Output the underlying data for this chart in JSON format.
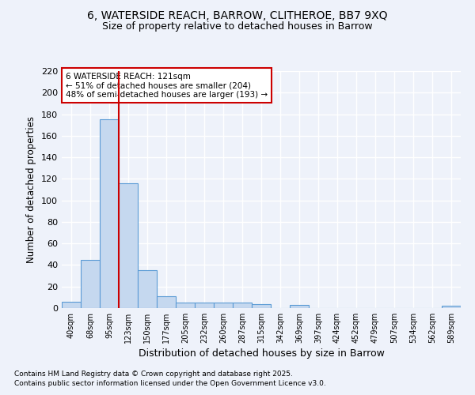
{
  "title1": "6, WATERSIDE REACH, BARROW, CLITHEROE, BB7 9XQ",
  "title2": "Size of property relative to detached houses in Barrow",
  "xlabel": "Distribution of detached houses by size in Barrow",
  "ylabel": "Number of detached properties",
  "categories": [
    "40sqm",
    "68sqm",
    "95sqm",
    "123sqm",
    "150sqm",
    "177sqm",
    "205sqm",
    "232sqm",
    "260sqm",
    "287sqm",
    "315sqm",
    "342sqm",
    "369sqm",
    "397sqm",
    "424sqm",
    "452sqm",
    "479sqm",
    "507sqm",
    "534sqm",
    "562sqm",
    "589sqm"
  ],
  "values": [
    6,
    45,
    175,
    116,
    35,
    11,
    5,
    5,
    5,
    5,
    4,
    0,
    3,
    0,
    0,
    0,
    0,
    0,
    0,
    0,
    2
  ],
  "bar_color": "#c5d8ef",
  "bar_edge_color": "#5b9bd5",
  "background_color": "#eef2fa",
  "grid_color": "#ffffff",
  "annotation_text": "6 WATERSIDE REACH: 121sqm\n← 51% of detached houses are smaller (204)\n48% of semi-detached houses are larger (193) →",
  "annotation_box_color": "#ffffff",
  "annotation_box_edge_color": "#cc0000",
  "vline_color": "#cc0000",
  "vline_x_index": 3,
  "ylim": [
    0,
    220
  ],
  "yticks": [
    0,
    20,
    40,
    60,
    80,
    100,
    120,
    140,
    160,
    180,
    200,
    220
  ],
  "footnote1": "Contains HM Land Registry data © Crown copyright and database right 2025.",
  "footnote2": "Contains public sector information licensed under the Open Government Licence v3.0."
}
